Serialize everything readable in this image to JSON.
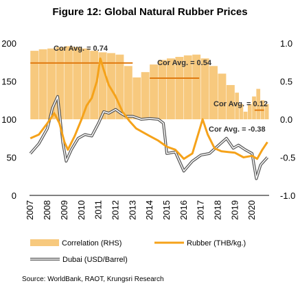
{
  "title": "Figure 12: Global Natural Rubber Prices",
  "source": "Source: WorldBank, RAOT, Krungsri Research",
  "chart_data": {
    "type": "line",
    "x_years": [
      "2007",
      "2008",
      "2009",
      "2010",
      "2011",
      "2012",
      "2013",
      "2014",
      "2015",
      "2016",
      "2017",
      "2018",
      "2019",
      "2020"
    ],
    "ylim_left": [
      0,
      200
    ],
    "yticks_left": [
      "0",
      "50",
      "100",
      "150",
      "200"
    ],
    "ylim_right": [
      -1.0,
      1.0
    ],
    "yticks_right": [
      "-1.0",
      "-0.5",
      "0.0",
      "0.5",
      "1.0"
    ],
    "legend_position": "bottom",
    "series": [
      {
        "name": "Correlation (RHS)",
        "kind": "bar",
        "axis": "right",
        "color": "#f7c97e",
        "x": [
          2007.0,
          2007.5,
          2008.0,
          2008.5,
          2009.0,
          2009.5,
          2010.0,
          2010.5,
          2011.0,
          2011.5,
          2012.0,
          2012.5,
          2013.0,
          2013.5,
          2014.0,
          2014.5,
          2015.0,
          2015.5,
          2016.0,
          2016.5,
          2017.0,
          2017.5,
          2018.0,
          2018.5,
          2019.0,
          2019.25,
          2019.5,
          2019.75,
          2020.0,
          2020.25,
          2020.5,
          2020.75
        ],
        "values": [
          0.9,
          0.92,
          0.93,
          0.95,
          0.96,
          0.95,
          0.93,
          0.9,
          0.88,
          0.87,
          0.85,
          0.7,
          0.55,
          0.62,
          0.72,
          0.78,
          0.8,
          0.82,
          0.84,
          0.85,
          0.8,
          0.7,
          0.6,
          0.45,
          0.35,
          0.2,
          0.1,
          0.2,
          0.3,
          0.4,
          0.25,
          0.2
        ]
      },
      {
        "name": "Rubber (THB/kg.)",
        "kind": "line",
        "axis": "left",
        "color": "#f5a21a",
        "x": [
          2007.0,
          2007.5,
          2008.0,
          2008.4,
          2008.7,
          2009.0,
          2009.2,
          2009.6,
          2010.0,
          2010.3,
          2010.6,
          2010.9,
          2011.1,
          2011.3,
          2011.6,
          2012.0,
          2012.4,
          2012.8,
          2013.2,
          2013.6,
          2014.0,
          2014.5,
          2015.0,
          2015.5,
          2016.0,
          2016.5,
          2016.9,
          2017.1,
          2017.4,
          2017.8,
          2018.2,
          2018.6,
          2019.0,
          2019.5,
          2020.0,
          2020.3,
          2020.6,
          2020.9
        ],
        "values": [
          75,
          80,
          95,
          108,
          95,
          70,
          60,
          78,
          100,
          118,
          128,
          150,
          180,
          165,
          145,
          130,
          110,
          98,
          88,
          83,
          78,
          72,
          64,
          60,
          48,
          55,
          85,
          100,
          80,
          62,
          58,
          57,
          56,
          50,
          52,
          48,
          60,
          70
        ]
      },
      {
        "name": "Dubai (USD/Barrel)",
        "kind": "line",
        "axis": "left",
        "color": "#555555",
        "x": [
          2007.0,
          2007.5,
          2008.0,
          2008.3,
          2008.6,
          2008.9,
          2009.1,
          2009.4,
          2009.8,
          2010.2,
          2010.6,
          2011.0,
          2011.3,
          2011.6,
          2012.0,
          2012.3,
          2012.6,
          2013.0,
          2013.5,
          2014.0,
          2014.5,
          2014.8,
          2015.0,
          2015.5,
          2016.0,
          2016.5,
          2017.0,
          2017.5,
          2018.0,
          2018.5,
          2018.9,
          2019.2,
          2019.6,
          2020.0,
          2020.25,
          2020.5,
          2020.9
        ],
        "values": [
          55,
          68,
          88,
          115,
          130,
          70,
          45,
          60,
          75,
          80,
          78,
          95,
          110,
          108,
          113,
          108,
          104,
          104,
          100,
          101,
          100,
          95,
          55,
          57,
          32,
          45,
          53,
          55,
          65,
          75,
          62,
          66,
          60,
          55,
          22,
          40,
          50
        ]
      }
    ],
    "annotations": [
      {
        "text": "Cor Avg. = 0.74",
        "value": 0.74,
        "x_start": 2007.0,
        "x_end": 2013.0
      },
      {
        "text": "Cor Avg. = 0.54",
        "value": 0.54,
        "x_start": 2014.0,
        "x_end": 2016.9
      },
      {
        "text": "Cor Avg. = 0.12",
        "value": 0.12,
        "x_start": 2020.15,
        "x_end": 2020.7
      },
      {
        "text": "Cor Avg. = -0.38",
        "value": -0.38,
        "x_start": null,
        "x_end": null
      }
    ]
  }
}
